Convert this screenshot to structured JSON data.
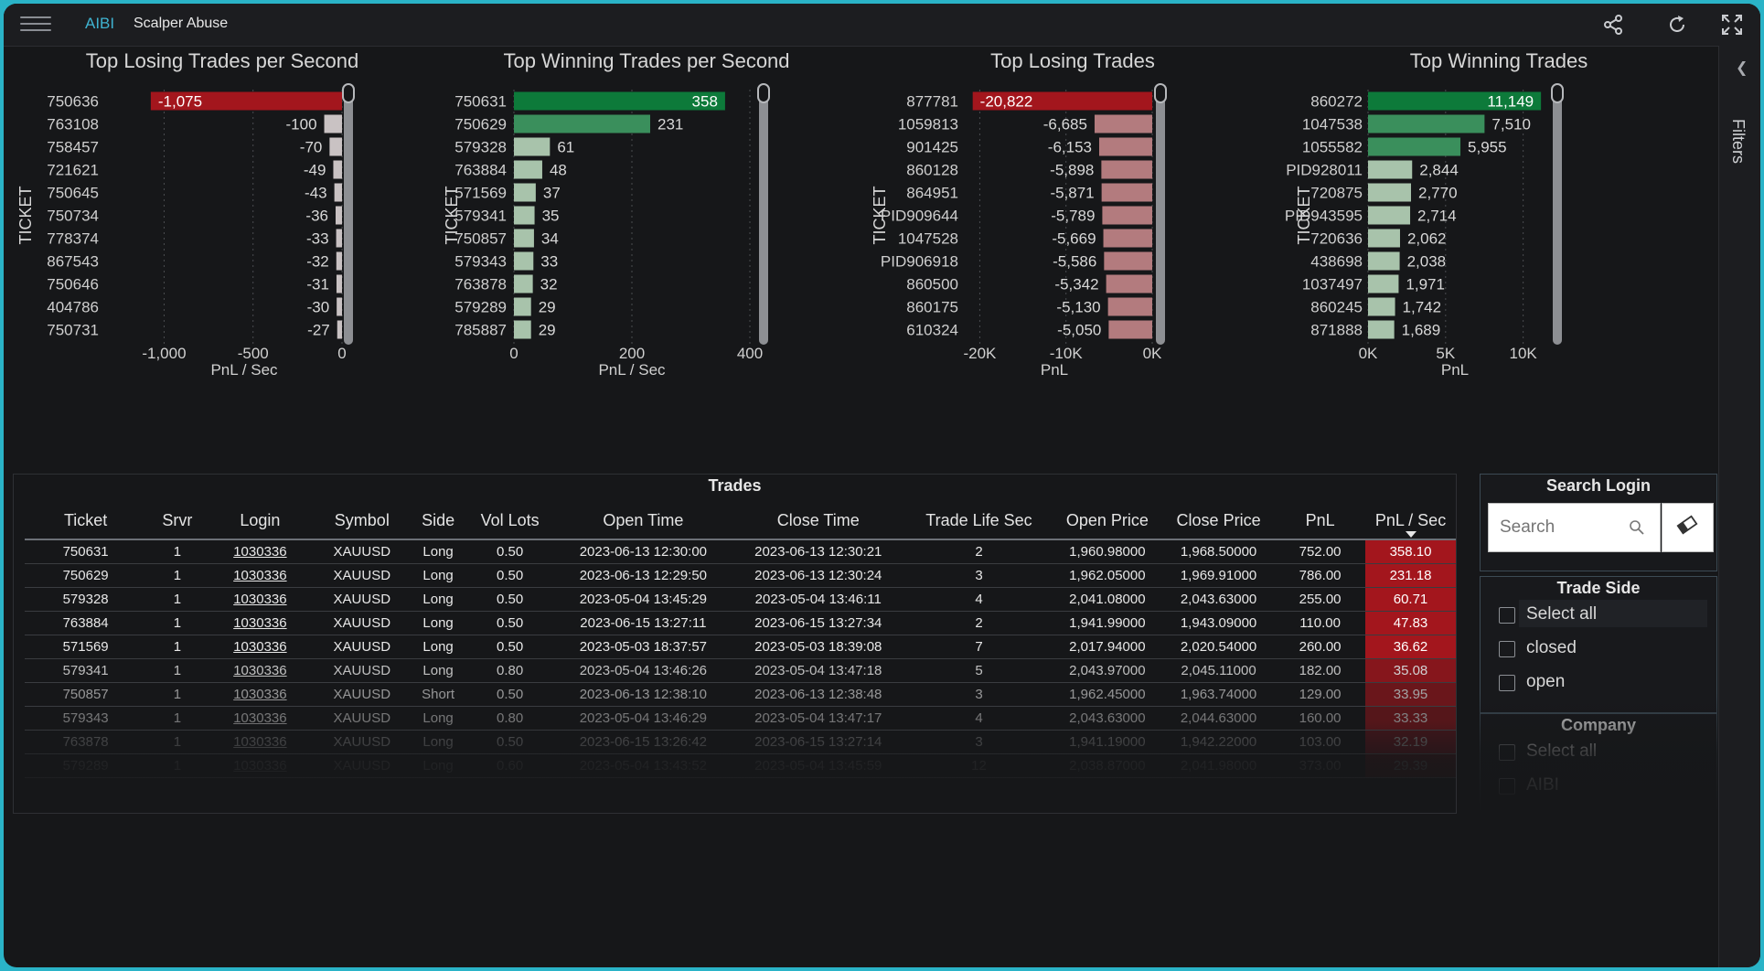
{
  "app": {
    "brand": "AIBI",
    "title": "Scalper Abuse",
    "icons": [
      "menu-icon",
      "share-icon",
      "refresh-icon",
      "fullscreen-icon"
    ]
  },
  "rail": {
    "label": "Filters",
    "icon": "chevron-left-icon"
  },
  "colors": {
    "loss_top": "#a3161d",
    "loss": "#b37b7e",
    "win_top": "#0d7a3a",
    "win_mid": "#3a8f5c",
    "win": "#a8c3ab",
    "neutral": "#c9c2c3",
    "accent": "#3fb3d0"
  },
  "chart_data": [
    {
      "type": "bar",
      "title": "Top Losing Trades per Second",
      "xlabel": "PnL / Sec",
      "ylabel": "TICKET",
      "categories": [
        "750636",
        "763108",
        "758457",
        "721621",
        "750645",
        "750734",
        "778374",
        "867543",
        "750646",
        "404786",
        "750731"
      ],
      "values": [
        -1075,
        -100,
        -70,
        -49,
        -43,
        -36,
        -33,
        -32,
        -31,
        -30,
        -27
      ],
      "labels": [
        "-1,075",
        "-100",
        "-70",
        "-49",
        "-43",
        "-36",
        "-33",
        "-32",
        "-31",
        "-30",
        "-27"
      ],
      "xlim": [
        -1100,
        0
      ],
      "xticks": [
        -1000,
        -500,
        0
      ],
      "xtick_labels": [
        "-1,000",
        "-500",
        "0"
      ]
    },
    {
      "type": "bar",
      "title": "Top Winning Trades per Second",
      "xlabel": "PnL / Sec",
      "ylabel": "TICKET",
      "categories": [
        "750631",
        "750629",
        "579328",
        "763884",
        "571569",
        "579341",
        "750857",
        "579343",
        "763878",
        "579289",
        "785887"
      ],
      "values": [
        358,
        231,
        61,
        48,
        37,
        35,
        34,
        33,
        32,
        29,
        29
      ],
      "labels": [
        "358",
        "231",
        "61",
        "48",
        "37",
        "35",
        "34",
        "33",
        "32",
        "29",
        "29"
      ],
      "xlim": [
        0,
        400
      ],
      "xticks": [
        0,
        200,
        400
      ],
      "xtick_labels": [
        "0",
        "200",
        "400"
      ]
    },
    {
      "type": "bar",
      "title": "Top Losing Trades",
      "xlabel": "PnL",
      "ylabel": "TICKET",
      "categories": [
        "877781",
        "1059813",
        "901425",
        "860128",
        "864951",
        "PID909644",
        "1047528",
        "PID906918",
        "860500",
        "860175",
        "610324"
      ],
      "values": [
        -20822,
        -6685,
        -6153,
        -5898,
        -5871,
        -5789,
        -5669,
        -5586,
        -5342,
        -5130,
        -5050
      ],
      "labels": [
        "-20,822",
        "-6,685",
        "-6,153",
        "-5,898",
        "-5,871",
        "-5,789",
        "-5,669",
        "-5,586",
        "-5,342",
        "-5,130",
        "-5,050"
      ],
      "xlim": [
        -21000,
        0
      ],
      "xticks": [
        -20000,
        -10000,
        0
      ],
      "xtick_labels": [
        "-20K",
        "-10K",
        "0K"
      ]
    },
    {
      "type": "bar",
      "title": "Top Winning Trades",
      "xlabel": "PnL",
      "ylabel": "TICKET",
      "categories": [
        "860272",
        "1047538",
        "1055582",
        "PID928011",
        "720875",
        "PID943595",
        "720636",
        "438698",
        "1037497",
        "860245",
        "871888"
      ],
      "values": [
        11149,
        7510,
        5955,
        2844,
        2770,
        2714,
        2062,
        2038,
        1971,
        1742,
        1689
      ],
      "labels": [
        "11,149",
        "7,510",
        "5,955",
        "2,844",
        "2,770",
        "2,714",
        "2,062",
        "2,038",
        "1,971",
        "1,742",
        "1,689"
      ],
      "xlim": [
        0,
        11200
      ],
      "xticks": [
        0,
        5000,
        10000
      ],
      "xtick_labels": [
        "0K",
        "5K",
        "10K"
      ]
    }
  ],
  "trades": {
    "title": "Trades",
    "columns": [
      "Ticket",
      "Srvr",
      "Login",
      "Symbol",
      "Side",
      "Vol Lots",
      "Open Time",
      "Close Time",
      "Trade Life Sec",
      "Open Price",
      "Close Price",
      "PnL",
      "PnL / Sec"
    ],
    "rows": [
      [
        "750631",
        "1",
        "1030336",
        "XAUUSD",
        "Long",
        "0.50",
        "2023-06-13 12:30:00",
        "2023-06-13 12:30:21",
        "2",
        "1,960.98000",
        "1,968.50000",
        "752.00",
        "358.10"
      ],
      [
        "750629",
        "1",
        "1030336",
        "XAUUSD",
        "Long",
        "0.50",
        "2023-06-13 12:29:50",
        "2023-06-13 12:30:24",
        "3",
        "1,962.05000",
        "1,969.91000",
        "786.00",
        "231.18"
      ],
      [
        "579328",
        "1",
        "1030336",
        "XAUUSD",
        "Long",
        "0.50",
        "2023-05-04 13:45:29",
        "2023-05-04 13:46:11",
        "4",
        "2,041.08000",
        "2,043.63000",
        "255.00",
        "60.71"
      ],
      [
        "763884",
        "1",
        "1030336",
        "XAUUSD",
        "Long",
        "0.50",
        "2023-06-15 13:27:11",
        "2023-06-15 13:27:34",
        "2",
        "1,941.99000",
        "1,943.09000",
        "110.00",
        "47.83"
      ],
      [
        "571569",
        "1",
        "1030336",
        "XAUUSD",
        "Long",
        "0.50",
        "2023-05-03 18:37:57",
        "2023-05-03 18:39:08",
        "7",
        "2,017.94000",
        "2,020.54000",
        "260.00",
        "36.62"
      ],
      [
        "579341",
        "1",
        "1030336",
        "XAUUSD",
        "Long",
        "0.80",
        "2023-05-04 13:46:26",
        "2023-05-04 13:47:18",
        "5",
        "2,043.97000",
        "2,045.11000",
        "182.00",
        "35.08"
      ],
      [
        "750857",
        "1",
        "1030336",
        "XAUUSD",
        "Short",
        "0.50",
        "2023-06-13 12:38:10",
        "2023-06-13 12:38:48",
        "3",
        "1,962.45000",
        "1,963.74000",
        "129.00",
        "33.95"
      ],
      [
        "579343",
        "1",
        "1030336",
        "XAUUSD",
        "Long",
        "0.80",
        "2023-05-04 13:46:29",
        "2023-05-04 13:47:17",
        "4",
        "2,043.63000",
        "2,044.63000",
        "160.00",
        "33.33"
      ],
      [
        "763878",
        "1",
        "1030336",
        "XAUUSD",
        "Long",
        "0.50",
        "2023-06-15 13:26:42",
        "2023-06-15 13:27:14",
        "3",
        "1,941.19000",
        "1,942.22000",
        "103.00",
        "32.19"
      ],
      [
        "579289",
        "1",
        "1030336",
        "XAUUSD",
        "Long",
        "0.60",
        "2023-05-04 13:43:52",
        "2023-05-04 13:45:59",
        "12",
        "2,038.87000",
        "2,041.98000",
        "373.00",
        "29.39"
      ]
    ]
  },
  "filters": {
    "search_login": {
      "title": "Search Login",
      "placeholder": "Search"
    },
    "trade_side": {
      "title": "Trade Side",
      "options": [
        "Select all",
        "closed",
        "open"
      ]
    },
    "company": {
      "title": "Company",
      "options": [
        "Select all",
        "AIBI"
      ]
    }
  }
}
